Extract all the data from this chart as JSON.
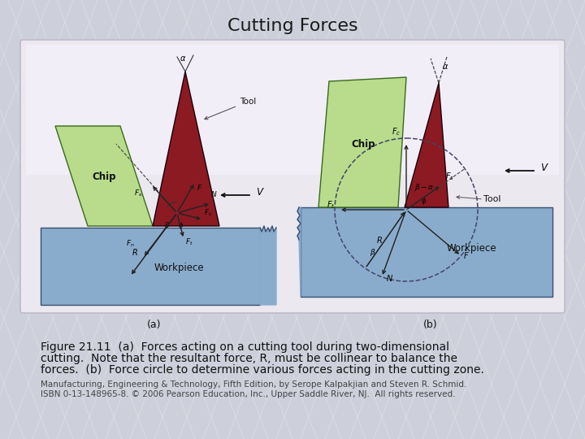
{
  "title": "Cutting Forces",
  "title_fontsize": 16,
  "title_color": "#1a1a1a",
  "background_color": "#cdd0da",
  "panel_bg_color": "#ebe8f0",
  "panel_inner_bg": "#f0edf5",
  "caption_line1": "Figure 21.11  (a)  Forces acting on a cutting tool during two-dimensional",
  "caption_line2": "cutting.  Note that the resultant force, ⁣R⁣, must be collinear to balance the",
  "caption_line3": "forces.  (b)  Force circle to determine various forces acting in the cutting zone.",
  "footer_line1": "Manufacturing, Engineering & Technology, Fifth Edition, by Serope Kalpakjian and Steven R. Schmid.",
  "footer_line2": "ISBN 0-13-148965-8. © 2006 Pearson Education, Inc., Upper Saddle River, NJ.  All rights reserved.",
  "caption_fontsize": 10,
  "footer_fontsize": 7.5,
  "sub_label_a": "(a)",
  "sub_label_b": "(b)",
  "chip_color": "#b8dc8c",
  "tool_color": "#8b1a22",
  "workpiece_color": "#8aaccc",
  "workpiece_edge": "#3a5070",
  "force_color": "#111111",
  "circle_color": "#444466"
}
